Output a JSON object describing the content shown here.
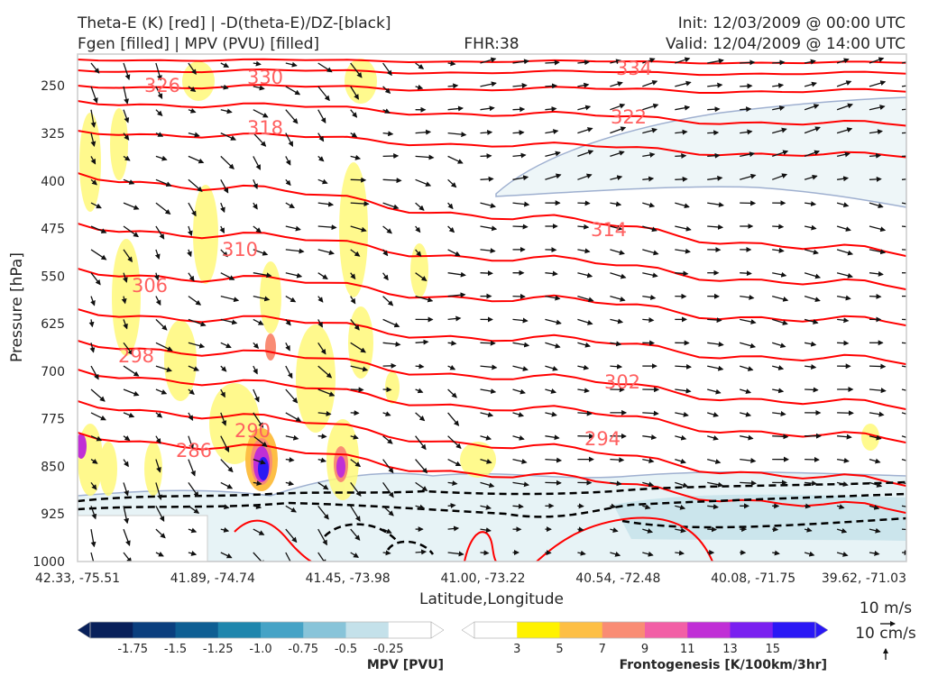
{
  "header": {
    "left_line1": "Theta-E (K) [red] | -D(theta-E)/DZ-[black]",
    "left_line2": "Fgen [filled] | MPV (PVU) [filled]",
    "center": "FHR:38",
    "right_line1": "Init: 12/03/2009 @ 00:00 UTC",
    "right_line2": "Valid: 12/04/2009 @ 14:00 UTC"
  },
  "chart_data": {
    "type": "cross-section",
    "xlabel": "Latitude,Longitude",
    "ylabel": "Pressure [hPa]",
    "x_ticks": [
      "42.33, -75.51",
      "41.89, -74.74",
      "41.45, -73.98",
      "41.00, -73.22",
      "40.54, -72.48",
      "40.08, -71.75",
      "39.62, -71.03"
    ],
    "y_ticks": [
      250,
      325,
      400,
      475,
      550,
      625,
      700,
      775,
      850,
      925,
      1000
    ],
    "ylim": [
      1000,
      200
    ],
    "y_scale": "pressure (inverted)",
    "theta_e_contours": [
      {
        "label": "286"
      },
      {
        "label": "290"
      },
      {
        "label": "294"
      },
      {
        "label": "298"
      },
      {
        "label": "302"
      },
      {
        "label": "306"
      },
      {
        "label": "310"
      },
      {
        "label": "314"
      },
      {
        "label": "318"
      },
      {
        "label": "322"
      },
      {
        "label": "326"
      },
      {
        "label": "330"
      },
      {
        "label": "334"
      }
    ],
    "colors": {
      "theta_e": "#ff0000",
      "theta_e_label": "#ff6060",
      "stability": "#000000",
      "mpv_contour": "#9fb0d0",
      "wind_arrow": "#111111"
    },
    "wind_reference": {
      "horizontal": "10 m/s",
      "vertical": "10 cm/s"
    }
  },
  "colorbar_mpv": {
    "label": "MPV [PVU]",
    "ticks": [
      "-1.75",
      "-1.5",
      "-1.25",
      "-1.0",
      "-0.75",
      "-0.5",
      "-0.25"
    ],
    "colors": [
      "#08205a",
      "#0b3f7e",
      "#0e5e93",
      "#1f86ad",
      "#46a3c6",
      "#88c4d9",
      "#c4e1ea",
      "#ffffff"
    ]
  },
  "colorbar_fgen": {
    "label": "Frontogenesis [K/100km/3hr]",
    "ticks": [
      "3",
      "5",
      "7",
      "9",
      "11",
      "13",
      "15"
    ],
    "colors": [
      "#ffffff",
      "#fff200",
      "#fdbf45",
      "#f98c74",
      "#f25fa6",
      "#c02fd6",
      "#7a20f0",
      "#2a18f5"
    ]
  }
}
